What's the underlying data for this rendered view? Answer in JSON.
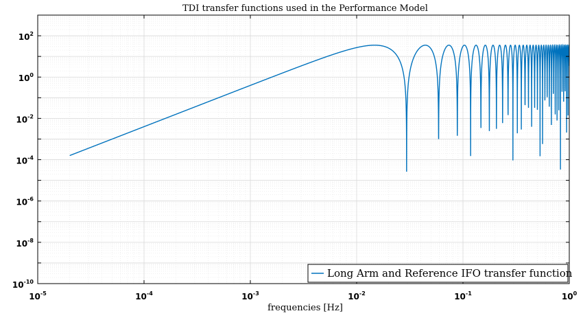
{
  "chart_data": {
    "type": "line",
    "title": "TDI transfer functions used in the Performance Model",
    "xlabel": "frequencies [Hz]",
    "ylabel": "",
    "x_scale": "log",
    "y_scale": "log",
    "xlim": [
      1e-05,
      1
    ],
    "ylim": [
      1e-10,
      1000
    ],
    "x_ticks": [
      {
        "base": "10",
        "exp": "-5"
      },
      {
        "base": "10",
        "exp": "-4"
      },
      {
        "base": "10",
        "exp": "-3"
      },
      {
        "base": "10",
        "exp": "-2"
      },
      {
        "base": "10",
        "exp": "-1"
      },
      {
        "base": "10",
        "exp": "0"
      }
    ],
    "y_ticks": [
      {
        "base": "10",
        "exp": "-10"
      },
      {
        "base": "10",
        "exp": "-8"
      },
      {
        "base": "10",
        "exp": "-6"
      },
      {
        "base": "10",
        "exp": "-4"
      },
      {
        "base": "10",
        "exp": "-2"
      },
      {
        "base": "10",
        "exp": "0"
      },
      {
        "base": "10",
        "exp": "2"
      }
    ],
    "grid": true,
    "minor_grid": true,
    "legend_position": "bottom-right",
    "series": [
      {
        "name": "Long Arm and Reference IFO transfer function",
        "color": "#0072BD",
        "f_start": 2e-05,
        "f_end": 1,
        "points": 6000,
        "first_null_hz": 0.0295,
        "peak_value": 35
      }
    ]
  }
}
